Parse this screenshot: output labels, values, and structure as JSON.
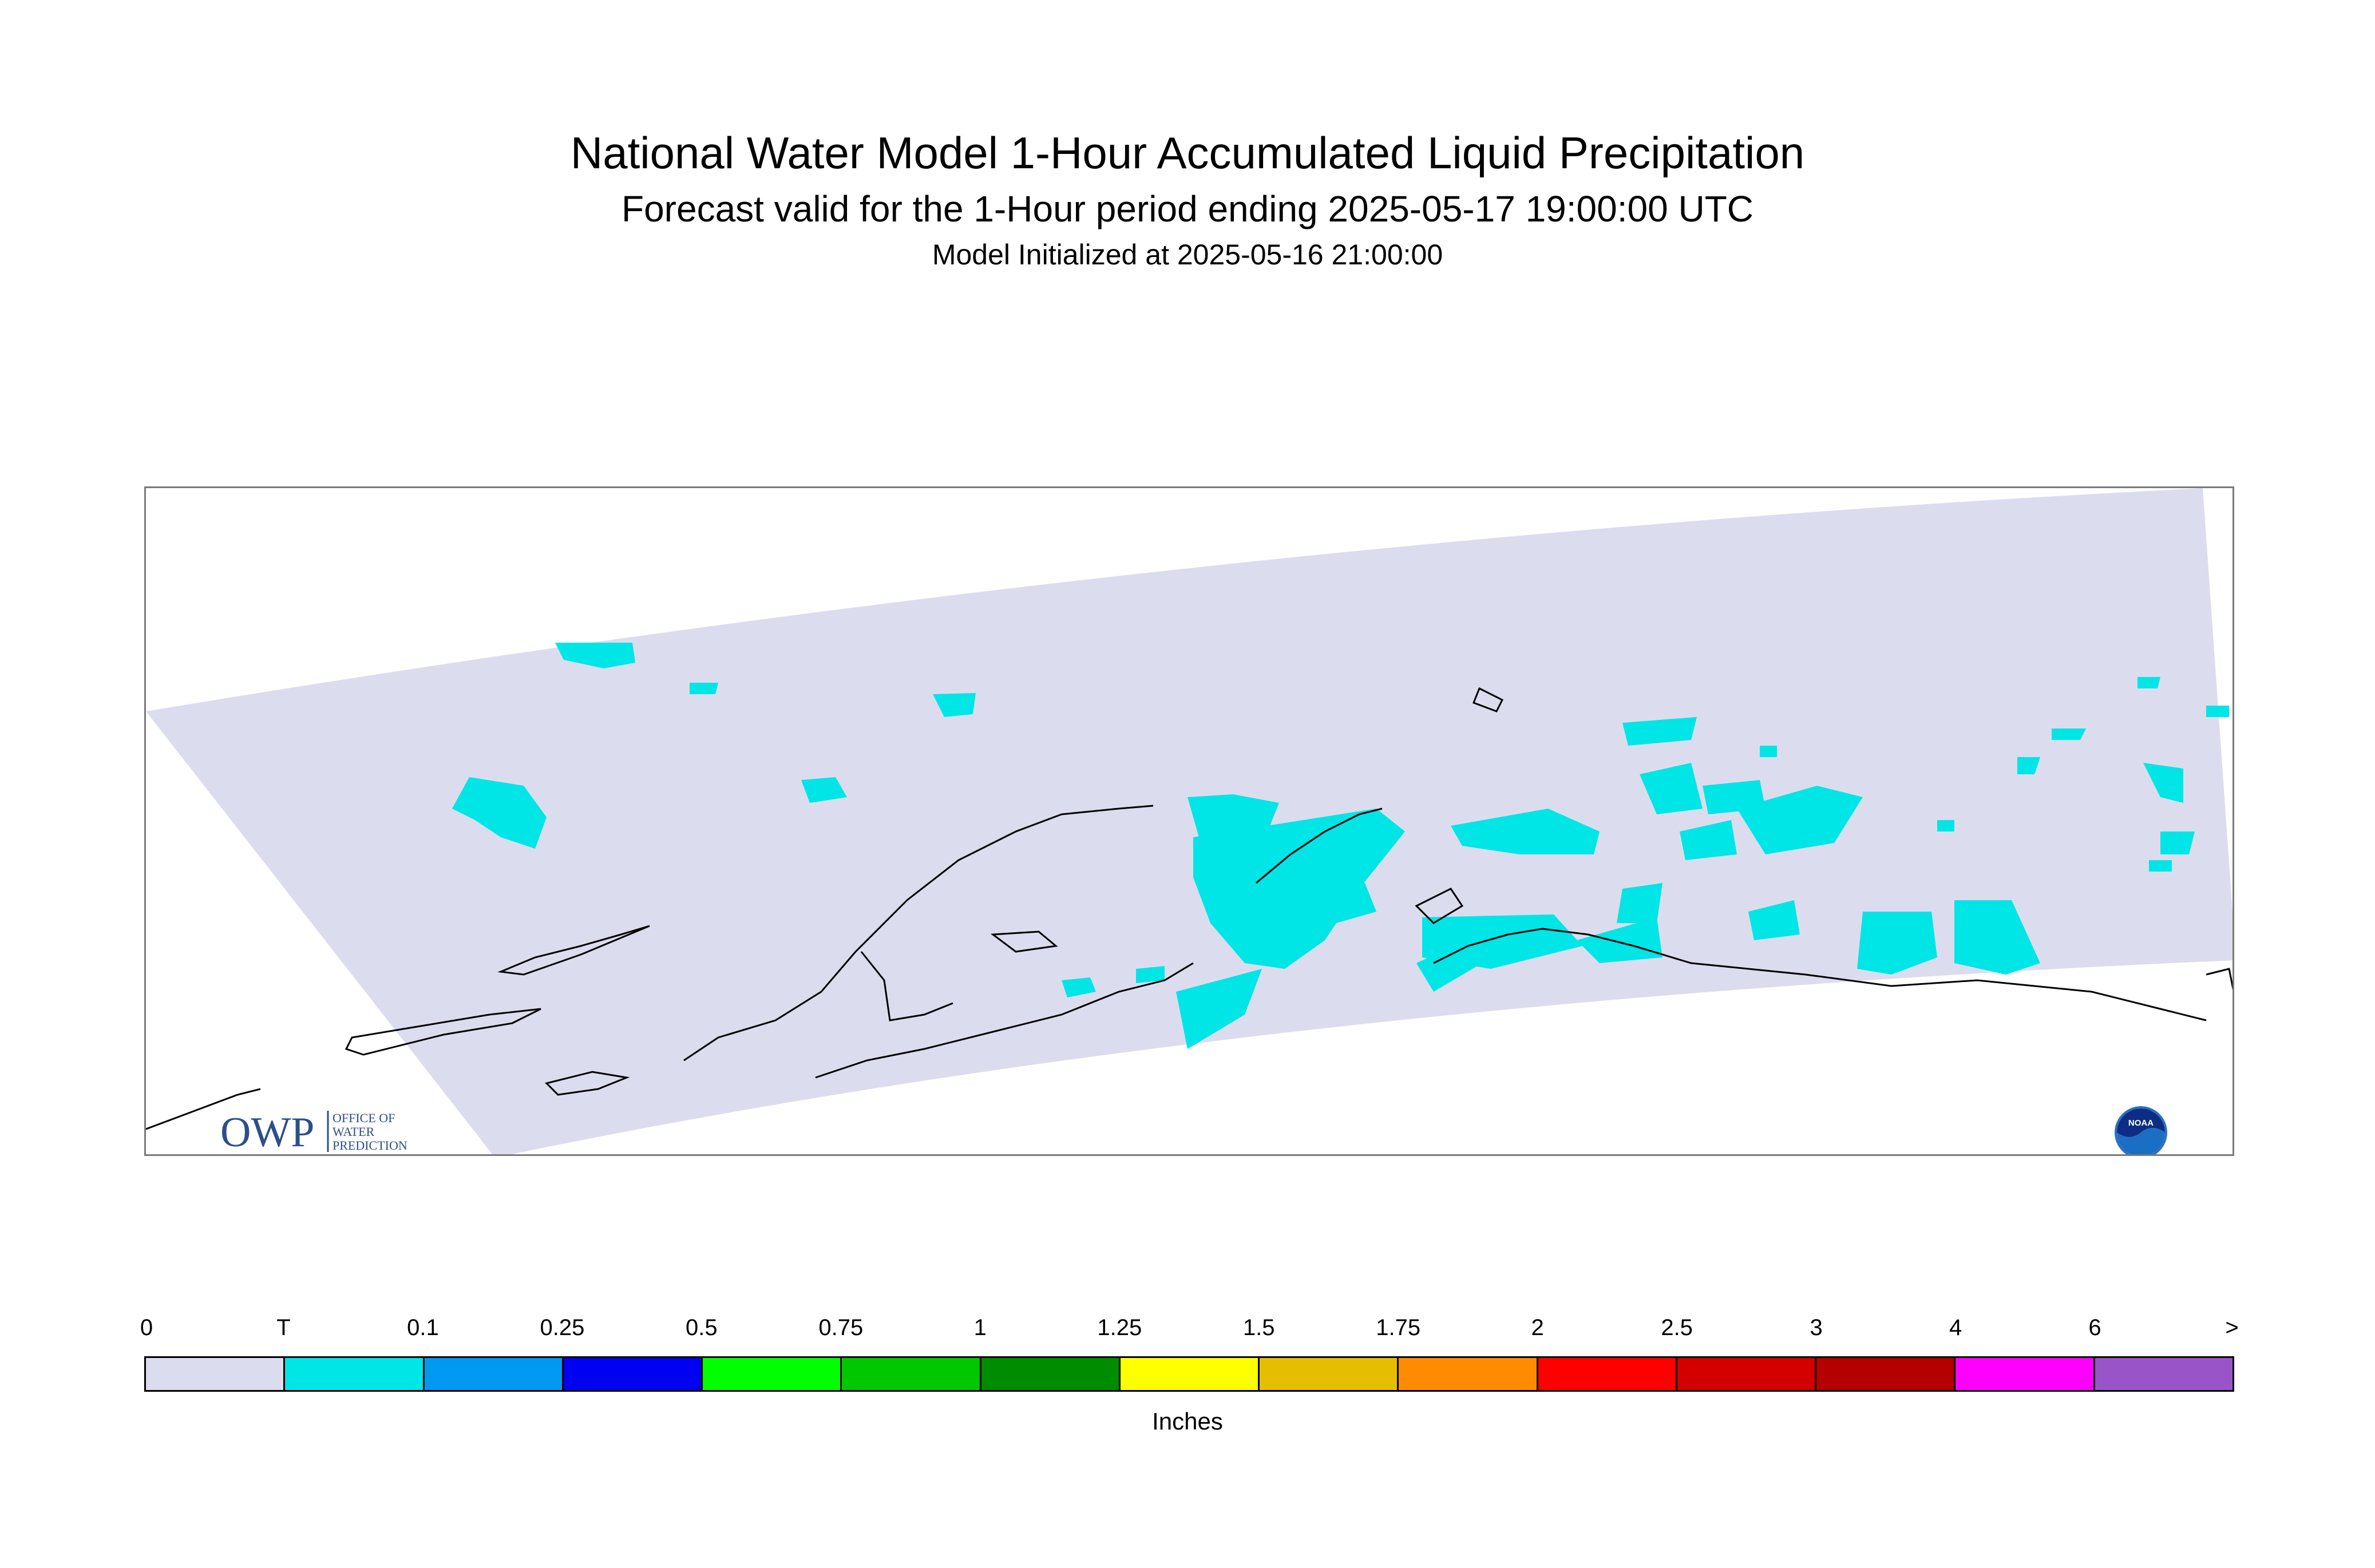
{
  "title": "National Water Model 1-Hour Accumulated Liquid Precipitation",
  "subtitle": "Forecast valid for the 1-Hour period ending 2025-05-17 19:00:00 UTC",
  "init_line": "Model Initialized at 2025-05-16 21:00:00",
  "map": {
    "region_fill_color": "#dcdcef",
    "precip_color": "#00e5e5",
    "coastline_color": "#000000",
    "border_color": "#7a7a7a",
    "logos": {
      "owp": {
        "mark": "OWP",
        "lines": [
          "OFFICE OF",
          "WATER",
          "PREDICTION"
        ],
        "color": "#2b4f8a"
      },
      "noaa": {
        "mark": "NOAA",
        "color": "#1a6fc4"
      }
    }
  },
  "legend": {
    "labels": [
      "0",
      "T",
      "0.1",
      "0.25",
      "0.5",
      "0.75",
      "1",
      "1.25",
      "1.5",
      "1.75",
      "2",
      "2.5",
      "3",
      "4",
      "6",
      ">"
    ],
    "colors": [
      "#dcdcef",
      "#00e5e5",
      "#0099f2",
      "#0000f2",
      "#00ff00",
      "#00c800",
      "#008c00",
      "#ffff00",
      "#e5be00",
      "#ff8c00",
      "#ff0000",
      "#d40000",
      "#b40000",
      "#ff00ff",
      "#9955c8"
    ],
    "unit": "Inches"
  }
}
